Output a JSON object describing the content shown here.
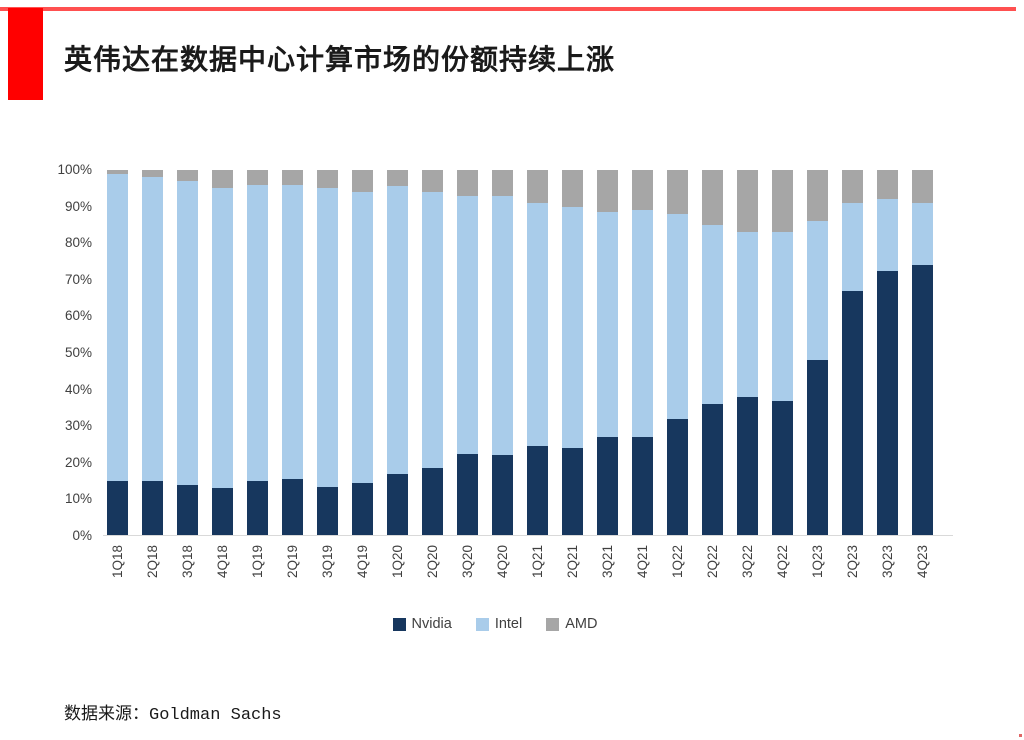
{
  "page": {
    "title": "英伟达在数据中心计算市场的份额持续上涨",
    "source_label": "数据来源：Goldman Sachs",
    "accent_red": "#FF0000",
    "top_line_red": "#FF5050"
  },
  "chart_data": {
    "type": "bar",
    "stacked": true,
    "unit": "percent market share",
    "title": "英伟达在数据中心计算市场的份额持续上涨",
    "xlabel": "",
    "ylabel": "",
    "ylim": [
      0,
      100
    ],
    "grid": false,
    "legend_position": "bottom",
    "y_ticks": [
      "100%",
      "90%",
      "80%",
      "70%",
      "60%",
      "50%",
      "40%",
      "30%",
      "20%",
      "10%",
      "0%"
    ],
    "categories": [
      "1Q18",
      "2Q18",
      "3Q18",
      "4Q18",
      "1Q19",
      "2Q19",
      "3Q19",
      "4Q19",
      "1Q20",
      "2Q20",
      "3Q20",
      "4Q20",
      "1Q21",
      "2Q21",
      "3Q21",
      "4Q21",
      "1Q22",
      "2Q22",
      "3Q22",
      "4Q22",
      "1Q23",
      "2Q23",
      "3Q23",
      "4Q23"
    ],
    "series": [
      {
        "name": "Nvidia",
        "color": "#17375E",
        "values": [
          15,
          15,
          14,
          13,
          15,
          15.5,
          13.5,
          14.5,
          17,
          18.5,
          22.5,
          22,
          24.5,
          24,
          27,
          27,
          32,
          36,
          38,
          37,
          48,
          67,
          72.5,
          74
        ]
      },
      {
        "name": "Intel",
        "color": "#A9CCEA",
        "values": [
          84,
          83,
          83,
          82,
          81,
          80.5,
          81.5,
          79.5,
          78.5,
          75.5,
          70.5,
          71,
          66.5,
          66,
          61.5,
          62,
          56,
          49,
          45,
          46,
          38,
          24,
          19.5,
          17
        ]
      },
      {
        "name": "AMD",
        "color": "#A6A6A6",
        "values": [
          1,
          2,
          3,
          5,
          4,
          4,
          5,
          6,
          4.5,
          6,
          7,
          7,
          9,
          10,
          11.5,
          11,
          12,
          15,
          17,
          17,
          14,
          9,
          8,
          9
        ]
      }
    ]
  }
}
